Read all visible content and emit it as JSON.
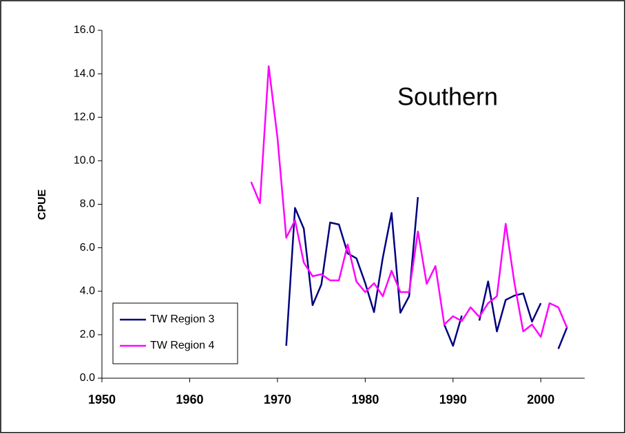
{
  "chart_data": {
    "type": "line",
    "annotation": "Southern",
    "annotation_color": "#ff0000",
    "ylabel": "CPUE",
    "x": [
      1967,
      1968,
      1969,
      1970,
      1971,
      1972,
      1973,
      1974,
      1975,
      1976,
      1977,
      1978,
      1979,
      1980,
      1981,
      1982,
      1983,
      1984,
      1985,
      1986,
      1987,
      1988,
      1989,
      1990,
      1991,
      1992,
      1993,
      1994,
      1995,
      1996,
      1997,
      1998,
      1999,
      2000,
      2001,
      2002,
      2003
    ],
    "series": [
      {
        "name": "TW Region 3",
        "color": "#000080",
        "values": [
          null,
          null,
          null,
          null,
          1.49,
          7.83,
          6.88,
          3.36,
          4.31,
          7.16,
          7.07,
          5.74,
          5.51,
          4.37,
          3.04,
          5.54,
          7.6,
          3.01,
          3.77,
          8.33,
          null,
          null,
          2.47,
          1.49,
          2.88,
          null,
          2.65,
          4.45,
          2.15,
          3.6,
          3.8,
          3.9,
          2.6,
          3.45,
          null,
          1.35,
          2.35
        ]
      },
      {
        "name": "TW Region 4",
        "color": "#ff00ff",
        "values": [
          9.03,
          8.05,
          14.35,
          11.06,
          6.46,
          7.26,
          5.32,
          4.69,
          4.78,
          4.5,
          4.5,
          6.15,
          4.44,
          3.96,
          4.37,
          3.77,
          4.94,
          3.96,
          3.96,
          6.75,
          4.34,
          5.16,
          2.47,
          2.85,
          2.63,
          3.26,
          2.82,
          3.45,
          3.77,
          7.1,
          4.37,
          2.15,
          2.47,
          1.9,
          3.45,
          3.26,
          2.31
        ]
      }
    ],
    "xlim": [
      1950,
      2005
    ],
    "xticks": [
      1950,
      1960,
      1970,
      1980,
      1990,
      2000
    ],
    "ylim": [
      0,
      16
    ],
    "yticks": [
      {
        "value": 0,
        "label": "0.0"
      },
      {
        "value": 2,
        "label": "2.0"
      },
      {
        "value": 4,
        "label": "4.0"
      },
      {
        "value": 6,
        "label": "6.0"
      },
      {
        "value": 8,
        "label": "8.0"
      },
      {
        "value": 10,
        "label": "10.0"
      },
      {
        "value": 12,
        "label": "12.0"
      },
      {
        "value": 14,
        "label": "14.0"
      },
      {
        "value": 16,
        "label": "16.0"
      }
    ],
    "legend": "lower left"
  }
}
